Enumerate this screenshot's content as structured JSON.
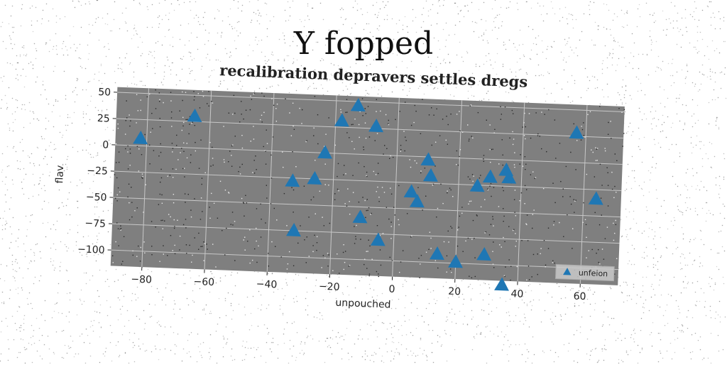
{
  "figure": {
    "suptitle": "Y fopped"
  },
  "chart_data": {
    "type": "scatter",
    "title": "recalibration depravers settles dregs",
    "xlabel": "unpouched",
    "ylabel": "flav",
    "xlim": [
      -90,
      72
    ],
    "ylim": [
      -115,
      55
    ],
    "xticks": [
      -80,
      -60,
      -40,
      -20,
      0,
      20,
      40,
      60
    ],
    "yticks": [
      50,
      25,
      0,
      -25,
      -50,
      -75,
      -100
    ],
    "grid": true,
    "legend_position": "lower-right",
    "series": [
      {
        "name": "unfeion",
        "marker": "triangle",
        "color": "#1f77b4",
        "points": [
          {
            "x": -82,
            "y": 7
          },
          {
            "x": -65,
            "y": 30
          },
          {
            "x": -33,
            "y": -28
          },
          {
            "x": -32,
            "y": -75
          },
          {
            "x": -26,
            "y": -25
          },
          {
            "x": -23,
            "y": 0
          },
          {
            "x": -18,
            "y": 31
          },
          {
            "x": -13,
            "y": 46
          },
          {
            "x": -11,
            "y": -60
          },
          {
            "x": -7,
            "y": 27
          },
          {
            "x": -5,
            "y": -81
          },
          {
            "x": 5,
            "y": -34
          },
          {
            "x": 7,
            "y": -43
          },
          {
            "x": 10,
            "y": -3
          },
          {
            "x": 11,
            "y": -18
          },
          {
            "x": 14,
            "y": -92
          },
          {
            "x": 20,
            "y": -99
          },
          {
            "x": 26,
            "y": -26
          },
          {
            "x": 29,
            "y": -91
          },
          {
            "x": 30,
            "y": -17
          },
          {
            "x": 35,
            "y": -10
          },
          {
            "x": 36,
            "y": -17
          },
          {
            "x": 35,
            "y": -119
          },
          {
            "x": 57,
            "y": 28
          },
          {
            "x": 64,
            "y": -34
          }
        ]
      }
    ]
  },
  "colors": {
    "plot_background": "#7f7f7f",
    "grid": "#c8c8c8",
    "marker": "#1f77b4"
  }
}
